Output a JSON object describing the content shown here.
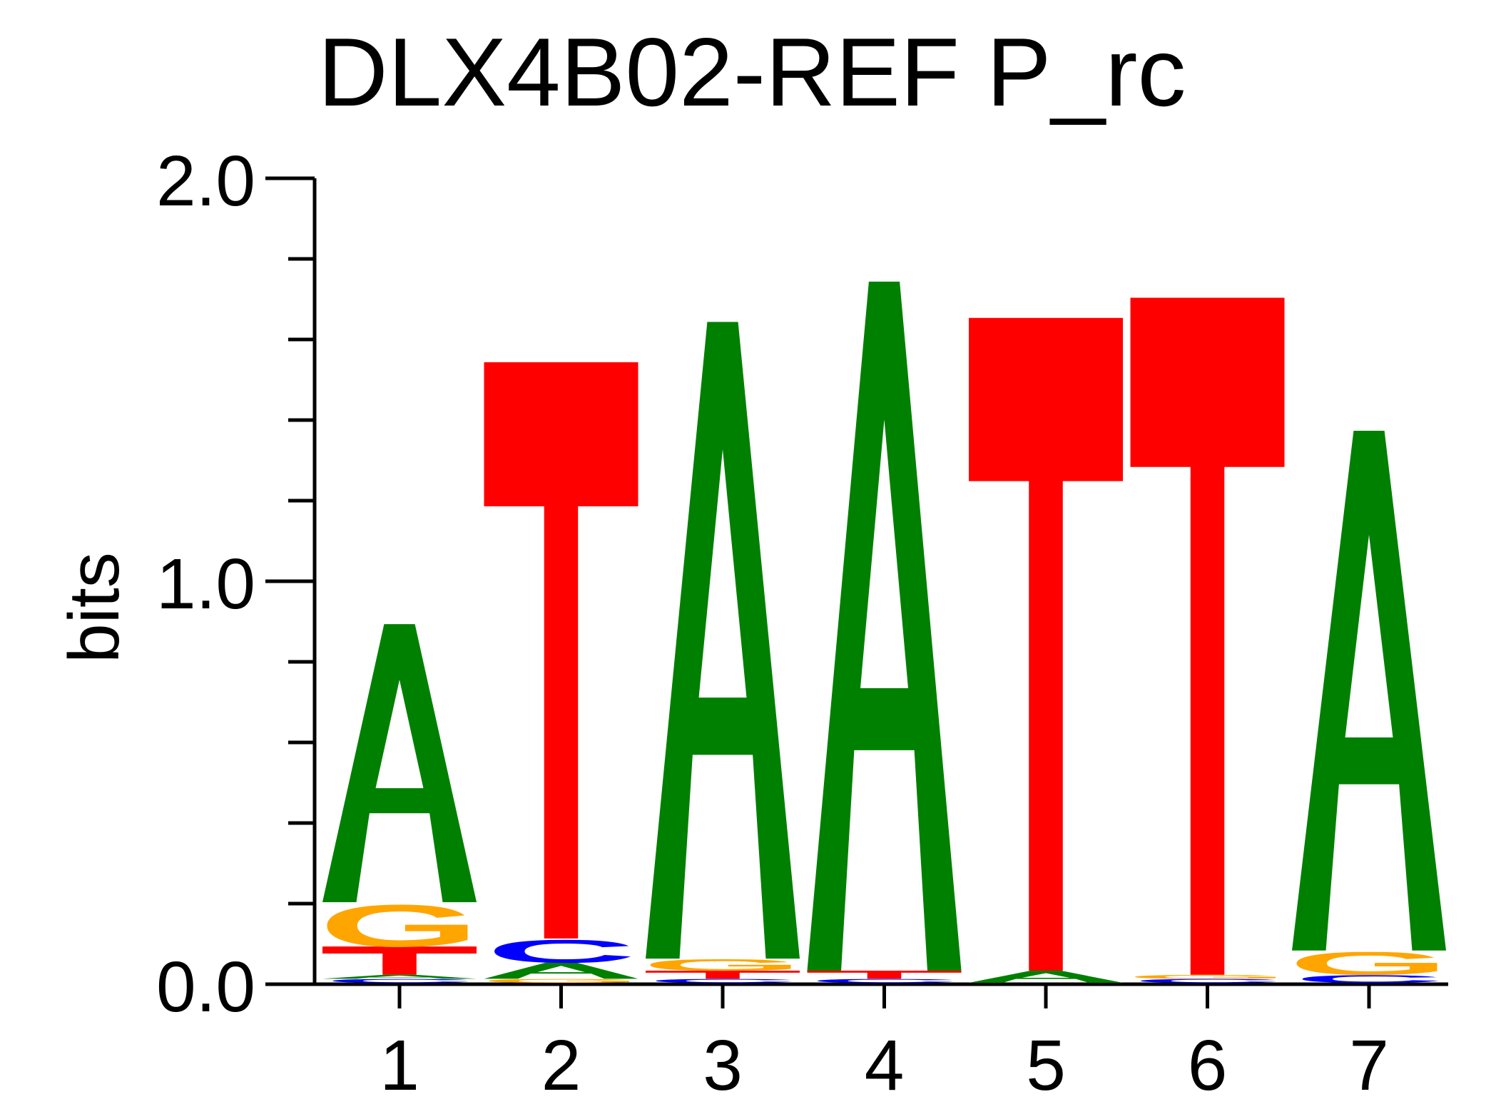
{
  "chart_data": {
    "type": "sequence-logo",
    "title": "DLX4B02-REF P_rc",
    "ylabel": "bits",
    "ylim": [
      0,
      2
    ],
    "y_ticks": [
      "0.0",
      "1.0",
      "2.0"
    ],
    "x_ticks": [
      "1",
      "2",
      "3",
      "4",
      "5",
      "6",
      "7"
    ],
    "colors": {
      "A": "#008000",
      "C": "#0000ff",
      "G": "#ffa500",
      "T": "#ff0000"
    },
    "positions": [
      {
        "pos": "1",
        "stack": [
          {
            "letter": "C",
            "bits": 0.01
          },
          {
            "letter": "A",
            "bits": 0.01
          },
          {
            "letter": "T",
            "bits": 0.07
          },
          {
            "letter": "G",
            "bits": 0.11
          },
          {
            "letter": "A",
            "bits": 0.69
          }
        ]
      },
      {
        "pos": "2",
        "stack": [
          {
            "letter": "G",
            "bits": 0.01
          },
          {
            "letter": "A",
            "bits": 0.04
          },
          {
            "letter": "C",
            "bits": 0.06
          },
          {
            "letter": "T",
            "bits": 1.43
          }
        ]
      },
      {
        "pos": "3",
        "stack": [
          {
            "letter": "C",
            "bits": 0.01
          },
          {
            "letter": "T",
            "bits": 0.02
          },
          {
            "letter": "G",
            "bits": 0.03
          },
          {
            "letter": "A",
            "bits": 1.58
          }
        ]
      },
      {
        "pos": "4",
        "stack": [
          {
            "letter": "C",
            "bits": 0.01
          },
          {
            "letter": "T",
            "bits": 0.02
          },
          {
            "letter": "A",
            "bits": 1.71
          }
        ]
      },
      {
        "pos": "5",
        "stack": [
          {
            "letter": "A",
            "bits": 0.03
          },
          {
            "letter": "T",
            "bits": 1.62
          }
        ]
      },
      {
        "pos": "6",
        "stack": [
          {
            "letter": "C",
            "bits": 0.01
          },
          {
            "letter": "G",
            "bits": 0.01
          },
          {
            "letter": "T",
            "bits": 1.68
          }
        ]
      },
      {
        "pos": "7",
        "stack": [
          {
            "letter": "C",
            "bits": 0.02
          },
          {
            "letter": "G",
            "bits": 0.06
          },
          {
            "letter": "A",
            "bits": 1.29
          }
        ]
      }
    ]
  }
}
